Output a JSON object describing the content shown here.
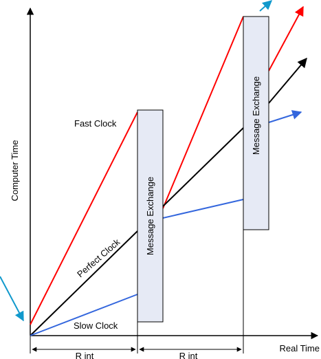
{
  "axes": {
    "y_label": "Computer Time",
    "x_label": "Real Time"
  },
  "clocks": {
    "fast": "Fast Clock",
    "perfect": "Perfect Clock",
    "slow": "Slow Clock"
  },
  "exchange": {
    "label_1": "Message Exchange",
    "label_2": "Message Exchange"
  },
  "intervals": {
    "label_1": "R int",
    "label_2": "R int"
  },
  "colors": {
    "fast": "#ff0000",
    "perfect": "#000000",
    "slow": "#3366dd",
    "arrow_accent": "#1199cc",
    "box_fill": "#e6eaf5",
    "box_stroke": "#000000"
  }
}
